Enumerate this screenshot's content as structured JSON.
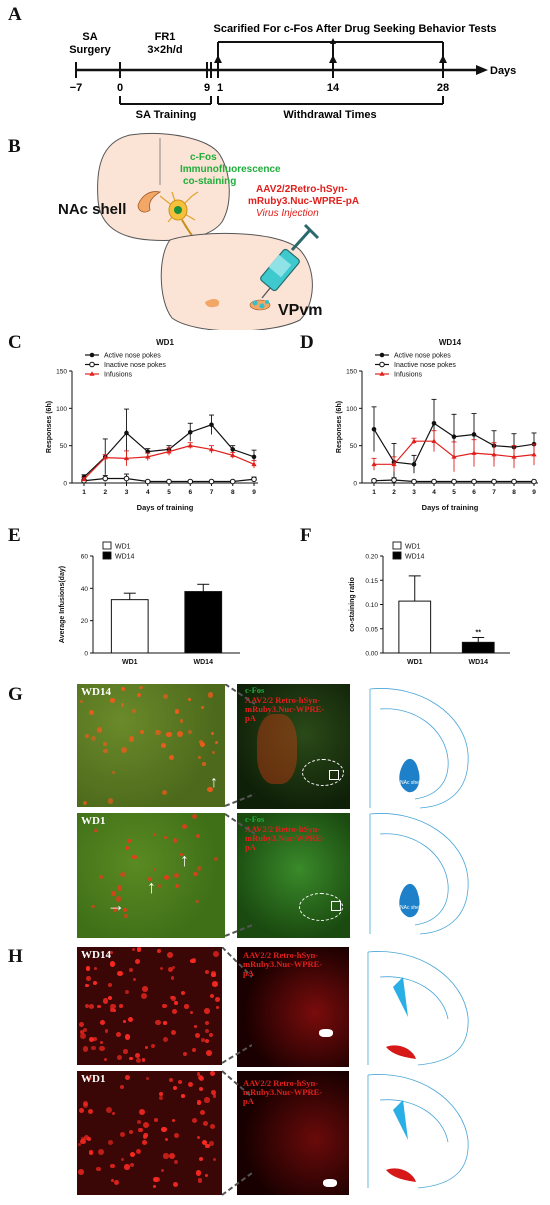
{
  "panels": {
    "A": "A",
    "B": "B",
    "C": "C",
    "D": "D",
    "E": "E",
    "F": "F",
    "G": "G",
    "H": "H"
  },
  "timeline": {
    "top_label": "Scarified For c-Fos After Drug Seeking Behavior Tests",
    "sa_surgery": [
      "SA",
      "Surgery"
    ],
    "fr1": [
      "FR1",
      "3×2h/d"
    ],
    "ticks": [
      "−7",
      "0",
      "9",
      "1",
      "14",
      "28"
    ],
    "days_label": "Days",
    "sa_training": "SA Training",
    "withdrawal": "Withdrawal Times"
  },
  "schematic": {
    "cfos_lines": [
      "c-Fos",
      "Immunofluorescence",
      "co-staining"
    ],
    "nac_shell": "NAc shell",
    "virus_lines": [
      "AAV2/2Retro-hSyn-",
      "mRuby3.Nuc-WPRE-pA"
    ],
    "virus_injection": "Virus Injection",
    "vpvm": "VPvm",
    "colors": {
      "green": "#1fae3a",
      "red": "#e0201c"
    }
  },
  "chart_data": [
    {
      "type": "line",
      "title": "WD1",
      "xlabel": "Days of training",
      "ylabel": "Responses (6h)",
      "x": [
        1,
        2,
        3,
        4,
        5,
        6,
        7,
        8,
        9
      ],
      "ylim": [
        0,
        150
      ],
      "yticks": [
        0,
        50,
        100,
        150
      ],
      "series": [
        {
          "name": "Active nose pokes",
          "values": [
            8,
            35,
            67,
            42,
            45,
            68,
            78,
            45,
            35
          ],
          "err": [
            3,
            24,
            32,
            4,
            5,
            12,
            13,
            5,
            9
          ],
          "color": "#111111",
          "marker": "filled-circle"
        },
        {
          "name": "Inactive nose pokes",
          "values": [
            3,
            6,
            6,
            2,
            2,
            2,
            2,
            2,
            5
          ],
          "err": [
            2,
            4,
            6,
            1,
            1,
            1,
            1,
            1,
            3
          ],
          "color": "#111111",
          "marker": "open-circle"
        },
        {
          "name": "Infusions",
          "values": [
            5,
            34,
            33,
            35,
            42,
            50,
            45,
            37,
            25
          ],
          "err": [
            2,
            4,
            10,
            5,
            5,
            4,
            5,
            4,
            5
          ],
          "color": "#e0201c",
          "marker": "triangle"
        }
      ]
    },
    {
      "type": "line",
      "title": "WD14",
      "xlabel": "Days of training",
      "ylabel": "Responses (6h)",
      "x": [
        1,
        2,
        3,
        4,
        5,
        6,
        7,
        8,
        9
      ],
      "ylim": [
        0,
        150
      ],
      "yticks": [
        0,
        50,
        100,
        150
      ],
      "series": [
        {
          "name": "Active nose pokes",
          "values": [
            72,
            28,
            25,
            80,
            62,
            65,
            50,
            48,
            52
          ],
          "err": [
            30,
            25,
            12,
            32,
            30,
            28,
            20,
            18,
            15
          ],
          "color": "#111111",
          "marker": "filled-circle"
        },
        {
          "name": "Inactive nose pokes",
          "values": [
            3,
            4,
            2,
            2,
            2,
            2,
            2,
            2,
            2
          ],
          "err": [
            2,
            3,
            1,
            1,
            1,
            1,
            1,
            1,
            1
          ],
          "color": "#111111",
          "marker": "open-circle"
        },
        {
          "name": "Infusions",
          "values": [
            25,
            25,
            56,
            56,
            35,
            40,
            38,
            35,
            38
          ],
          "err": [
            8,
            10,
            4,
            14,
            20,
            18,
            16,
            15,
            14
          ],
          "color": "#e0201c",
          "marker": "triangle"
        }
      ]
    },
    {
      "type": "bar",
      "categories": [
        "WD1",
        "WD14"
      ],
      "values": [
        33,
        38
      ],
      "err": [
        4,
        4.5
      ],
      "ylabel": "Average Infusions(day)",
      "ylim": [
        0,
        60
      ],
      "yticks": [
        0,
        20,
        40,
        60
      ],
      "legend": [
        "WD1",
        "WD14"
      ],
      "fills": [
        "#ffffff",
        "#000000"
      ]
    },
    {
      "type": "bar",
      "categories": [
        "WD1",
        "WD14"
      ],
      "values": [
        0.107,
        0.022
      ],
      "err": [
        0.052,
        0.01
      ],
      "ylabel": "co-staining ratio",
      "ylim": [
        0,
        0.2
      ],
      "yticks": [
        0.0,
        0.05,
        0.1,
        0.15,
        0.2
      ],
      "ytick_labels": [
        "0.00",
        "0.05",
        "0.10",
        "0.15",
        "0.20"
      ],
      "legend": [
        "WD1",
        "WD14"
      ],
      "fills": [
        "#ffffff",
        "#000000"
      ],
      "annotation": "**"
    }
  ],
  "panelG": {
    "wd14": "WD14",
    "wd1": "WD1",
    "cfos": "c-Fos",
    "aav_lines": [
      "AAV2/2 Retro-hSyn-",
      "mRuby3.Nuc-WPRE-",
      "pA"
    ],
    "nac_shell": "NAc shell"
  },
  "panelH": {
    "wd14": "WD14",
    "wd1": "WD1",
    "aav_lines": [
      "AAV2/2 Retro-hSyn-",
      "mRuby3.Nuc-WPRE-",
      "pA"
    ]
  }
}
